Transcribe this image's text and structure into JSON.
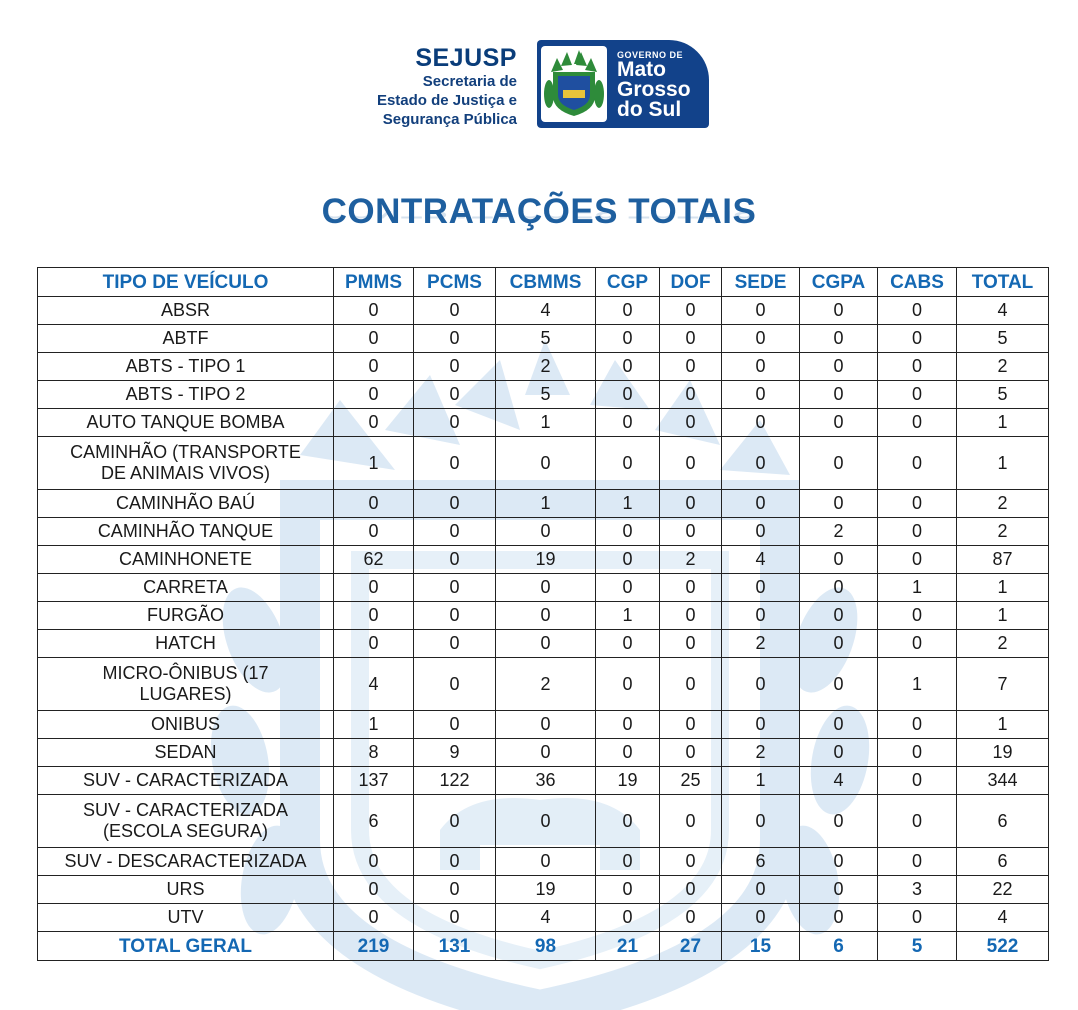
{
  "header": {
    "sejusp": {
      "title": "SEJUSP",
      "line1": "Secretaria de",
      "line2": "Estado de Justiça e",
      "line3": "Segurança Pública"
    },
    "government": {
      "small": "GOVERNO DE",
      "line1": "Mato",
      "line2": "Grosso",
      "line3": "do Sul"
    }
  },
  "title": "CONTRATAÇÕES TOTAIS",
  "colors": {
    "accent": "#1468b3",
    "brand_navy": "#12428a",
    "watermark": "#dce9f5"
  },
  "table": {
    "columns": [
      "TIPO DE VEÍCULO",
      "PMMS",
      "PCMS",
      "CBMMS",
      "CGP",
      "DOF",
      "SEDE",
      "CGPA",
      "CABS",
      "TOTAL"
    ],
    "rows": [
      {
        "name": "ABSR",
        "values": [
          "0",
          "0",
          "4",
          "0",
          "0",
          "0",
          "0",
          "0",
          "4"
        ]
      },
      {
        "name": "ABTF",
        "values": [
          "0",
          "0",
          "5",
          "0",
          "0",
          "0",
          "0",
          "0",
          "5"
        ]
      },
      {
        "name": "ABTS - TIPO 1",
        "values": [
          "0",
          "0",
          "2",
          "0",
          "0",
          "0",
          "0",
          "0",
          "2"
        ]
      },
      {
        "name": "ABTS - TIPO 2",
        "values": [
          "0",
          "0",
          "5",
          "0",
          "0",
          "0",
          "0",
          "0",
          "5"
        ]
      },
      {
        "name": "AUTO TANQUE BOMBA",
        "values": [
          "0",
          "0",
          "1",
          "0",
          "0",
          "0",
          "0",
          "0",
          "1"
        ]
      },
      {
        "name_lines": [
          "CAMINHÃO (TRANSPORTE",
          "DE ANIMAIS VIVOS)"
        ],
        "values": [
          "1",
          "0",
          "0",
          "0",
          "0",
          "0",
          "0",
          "0",
          "1"
        ]
      },
      {
        "name": "CAMINHÃO BAÚ",
        "values": [
          "0",
          "0",
          "1",
          "1",
          "0",
          "0",
          "0",
          "0",
          "2"
        ]
      },
      {
        "name": "CAMINHÃO TANQUE",
        "values": [
          "0",
          "0",
          "0",
          "0",
          "0",
          "0",
          "2",
          "0",
          "2"
        ]
      },
      {
        "name": "CAMINHONETE",
        "values": [
          "62",
          "0",
          "19",
          "0",
          "2",
          "4",
          "0",
          "0",
          "87"
        ]
      },
      {
        "name": "CARRETA",
        "values": [
          "0",
          "0",
          "0",
          "0",
          "0",
          "0",
          "0",
          "1",
          "1"
        ]
      },
      {
        "name": "FURGÃO",
        "values": [
          "0",
          "0",
          "0",
          "1",
          "0",
          "0",
          "0",
          "0",
          "1"
        ]
      },
      {
        "name": "HATCH",
        "values": [
          "0",
          "0",
          "0",
          "0",
          "0",
          "2",
          "0",
          "0",
          "2"
        ]
      },
      {
        "name_lines": [
          "MICRO-ÔNIBUS (17",
          "LUGARES)"
        ],
        "values": [
          "4",
          "0",
          "2",
          "0",
          "0",
          "0",
          "0",
          "1",
          "7"
        ]
      },
      {
        "name": "ONIBUS",
        "values": [
          "1",
          "0",
          "0",
          "0",
          "0",
          "0",
          "0",
          "0",
          "1"
        ]
      },
      {
        "name": "SEDAN",
        "values": [
          "8",
          "9",
          "0",
          "0",
          "0",
          "2",
          "0",
          "0",
          "19"
        ]
      },
      {
        "name": "SUV - CARACTERIZADA",
        "values": [
          "137",
          "122",
          "36",
          "19",
          "25",
          "1",
          "4",
          "0",
          "344"
        ]
      },
      {
        "name_lines": [
          "SUV - CARACTERIZADA",
          "(ESCOLA SEGURA)"
        ],
        "values": [
          "6",
          "0",
          "0",
          "0",
          "0",
          "0",
          "0",
          "0",
          "6"
        ]
      },
      {
        "name": "SUV - DESCARACTERIZADA",
        "values": [
          "0",
          "0",
          "0",
          "0",
          "0",
          "6",
          "0",
          "0",
          "6"
        ]
      },
      {
        "name": "URS",
        "values": [
          "0",
          "0",
          "19",
          "0",
          "0",
          "0",
          "0",
          "3",
          "22"
        ]
      },
      {
        "name": "UTV",
        "values": [
          "0",
          "0",
          "4",
          "0",
          "0",
          "0",
          "0",
          "0",
          "4"
        ]
      }
    ],
    "total": {
      "label": "TOTAL GERAL",
      "values": [
        "219",
        "131",
        "98",
        "21",
        "27",
        "15",
        "6",
        "5",
        "522"
      ]
    }
  }
}
